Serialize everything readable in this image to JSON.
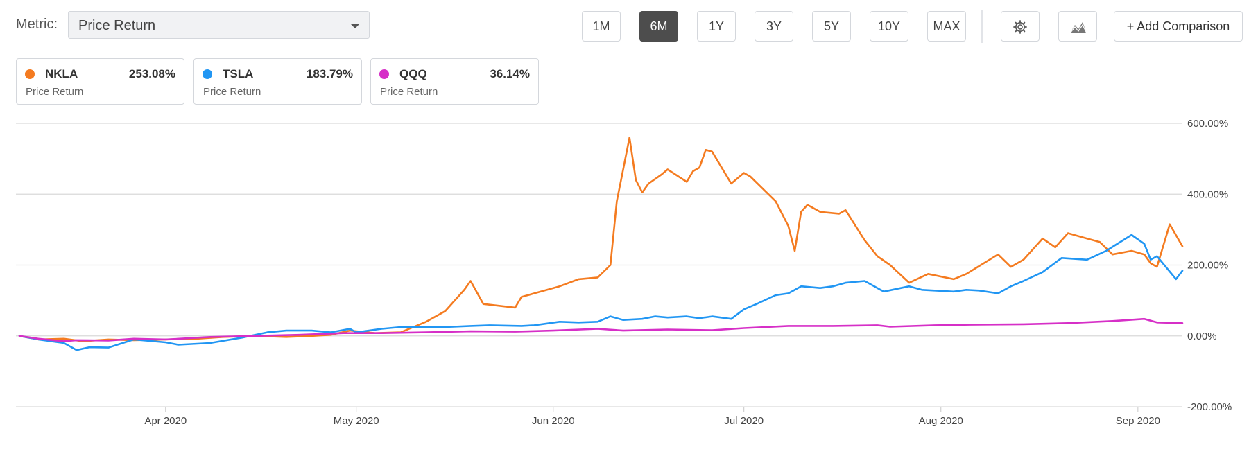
{
  "header": {
    "metric_label": "Metric:",
    "metric_value": "Price Return",
    "ranges": [
      "1M",
      "6M",
      "1Y",
      "3Y",
      "5Y",
      "10Y",
      "MAX"
    ],
    "active_range": "6M",
    "settings_icon": "gear-icon",
    "chart_type_icon": "mountain-chart-icon",
    "add_comparison_label": "+ Add Comparison"
  },
  "legend": [
    {
      "ticker": "NKLA",
      "value": "253.08%",
      "sub": "Price Return",
      "color": "#f47b20"
    },
    {
      "ticker": "TSLA",
      "value": "183.79%",
      "sub": "Price Return",
      "color": "#2196f3"
    },
    {
      "ticker": "QQQ",
      "value": "36.14%",
      "sub": "Price Return",
      "color": "#d62fc7"
    }
  ],
  "chart_data": {
    "type": "line",
    "x_start": "2020-03-09",
    "x_end": "2020-09-08",
    "ylim": [
      -200,
      600
    ],
    "y_ticks": [
      "600.00%",
      "400.00%",
      "200.00%",
      "0.00%",
      "-200.00%"
    ],
    "x_ticks": [
      {
        "label": "Apr 2020",
        "date": "2020-04-01"
      },
      {
        "label": "May 2020",
        "date": "2020-05-01"
      },
      {
        "label": "Jun 2020",
        "date": "2020-06-01"
      },
      {
        "label": "Jul 2020",
        "date": "2020-07-01"
      },
      {
        "label": "Aug 2020",
        "date": "2020-08-01"
      },
      {
        "label": "Sep 2020",
        "date": "2020-09-01"
      }
    ],
    "grid": true,
    "series": [
      {
        "name": "NKLA",
        "color": "#f47b20",
        "points": [
          [
            "2020-03-09",
            0
          ],
          [
            "2020-03-12",
            -10
          ],
          [
            "2020-03-16",
            -8
          ],
          [
            "2020-03-19",
            -15
          ],
          [
            "2020-03-23",
            -10
          ],
          [
            "2020-03-27",
            -12
          ],
          [
            "2020-04-01",
            -10
          ],
          [
            "2020-04-06",
            -8
          ],
          [
            "2020-04-10",
            -3
          ],
          [
            "2020-04-15",
            0
          ],
          [
            "2020-04-20",
            -3
          ],
          [
            "2020-04-24",
            0
          ],
          [
            "2020-04-27",
            3
          ],
          [
            "2020-04-30",
            15
          ],
          [
            "2020-05-04",
            8
          ],
          [
            "2020-05-08",
            10
          ],
          [
            "2020-05-12",
            40
          ],
          [
            "2020-05-15",
            70
          ],
          [
            "2020-05-18",
            130
          ],
          [
            "2020-05-19",
            155
          ],
          [
            "2020-05-21",
            90
          ],
          [
            "2020-05-26",
            80
          ],
          [
            "2020-05-27",
            110
          ],
          [
            "2020-05-29",
            120
          ],
          [
            "2020-06-02",
            140
          ],
          [
            "2020-06-05",
            160
          ],
          [
            "2020-06-08",
            165
          ],
          [
            "2020-06-10",
            200
          ],
          [
            "2020-06-11",
            380
          ],
          [
            "2020-06-12",
            470
          ],
          [
            "2020-06-13",
            560
          ],
          [
            "2020-06-14",
            440
          ],
          [
            "2020-06-15",
            405
          ],
          [
            "2020-06-16",
            430
          ],
          [
            "2020-06-18",
            455
          ],
          [
            "2020-06-19",
            470
          ],
          [
            "2020-06-22",
            435
          ],
          [
            "2020-06-23",
            465
          ],
          [
            "2020-06-24",
            475
          ],
          [
            "2020-06-25",
            525
          ],
          [
            "2020-06-26",
            520
          ],
          [
            "2020-06-29",
            430
          ],
          [
            "2020-07-01",
            460
          ],
          [
            "2020-07-02",
            450
          ],
          [
            "2020-07-06",
            380
          ],
          [
            "2020-07-08",
            310
          ],
          [
            "2020-07-09",
            240
          ],
          [
            "2020-07-10",
            350
          ],
          [
            "2020-07-11",
            370
          ],
          [
            "2020-07-13",
            350
          ],
          [
            "2020-07-16",
            345
          ],
          [
            "2020-07-17",
            355
          ],
          [
            "2020-07-20",
            270
          ],
          [
            "2020-07-22",
            225
          ],
          [
            "2020-07-24",
            200
          ],
          [
            "2020-07-27",
            150
          ],
          [
            "2020-07-30",
            175
          ],
          [
            "2020-08-03",
            160
          ],
          [
            "2020-08-05",
            175
          ],
          [
            "2020-08-10",
            230
          ],
          [
            "2020-08-12",
            195
          ],
          [
            "2020-08-14",
            215
          ],
          [
            "2020-08-17",
            275
          ],
          [
            "2020-08-19",
            250
          ],
          [
            "2020-08-21",
            290
          ],
          [
            "2020-08-24",
            275
          ],
          [
            "2020-08-26",
            265
          ],
          [
            "2020-08-28",
            230
          ],
          [
            "2020-08-31",
            240
          ],
          [
            "2020-09-02",
            230
          ],
          [
            "2020-09-03",
            205
          ],
          [
            "2020-09-04",
            195
          ],
          [
            "2020-09-06",
            315
          ],
          [
            "2020-09-08",
            253
          ]
        ]
      },
      {
        "name": "TSLA",
        "color": "#2196f3",
        "points": [
          [
            "2020-03-09",
            0
          ],
          [
            "2020-03-12",
            -10
          ],
          [
            "2020-03-16",
            -20
          ],
          [
            "2020-03-18",
            -40
          ],
          [
            "2020-03-20",
            -32
          ],
          [
            "2020-03-23",
            -33
          ],
          [
            "2020-03-27",
            -10
          ],
          [
            "2020-04-01",
            -18
          ],
          [
            "2020-04-03",
            -25
          ],
          [
            "2020-04-08",
            -20
          ],
          [
            "2020-04-13",
            -5
          ],
          [
            "2020-04-17",
            10
          ],
          [
            "2020-04-20",
            15
          ],
          [
            "2020-04-24",
            15
          ],
          [
            "2020-04-27",
            10
          ],
          [
            "2020-04-30",
            20
          ],
          [
            "2020-05-01",
            10
          ],
          [
            "2020-05-05",
            20
          ],
          [
            "2020-05-08",
            25
          ],
          [
            "2020-05-12",
            25
          ],
          [
            "2020-05-15",
            25
          ],
          [
            "2020-05-19",
            28
          ],
          [
            "2020-05-22",
            30
          ],
          [
            "2020-05-27",
            28
          ],
          [
            "2020-05-29",
            30
          ],
          [
            "2020-06-02",
            40
          ],
          [
            "2020-06-05",
            38
          ],
          [
            "2020-06-08",
            40
          ],
          [
            "2020-06-10",
            55
          ],
          [
            "2020-06-12",
            45
          ],
          [
            "2020-06-15",
            48
          ],
          [
            "2020-06-17",
            55
          ],
          [
            "2020-06-19",
            52
          ],
          [
            "2020-06-22",
            55
          ],
          [
            "2020-06-24",
            50
          ],
          [
            "2020-06-26",
            55
          ],
          [
            "2020-06-29",
            48
          ],
          [
            "2020-07-01",
            75
          ],
          [
            "2020-07-03",
            90
          ],
          [
            "2020-07-06",
            115
          ],
          [
            "2020-07-08",
            120
          ],
          [
            "2020-07-10",
            140
          ],
          [
            "2020-07-13",
            135
          ],
          [
            "2020-07-15",
            140
          ],
          [
            "2020-07-17",
            150
          ],
          [
            "2020-07-20",
            155
          ],
          [
            "2020-07-21",
            145
          ],
          [
            "2020-07-23",
            125
          ],
          [
            "2020-07-27",
            140
          ],
          [
            "2020-07-29",
            130
          ],
          [
            "2020-08-03",
            125
          ],
          [
            "2020-08-05",
            130
          ],
          [
            "2020-08-07",
            128
          ],
          [
            "2020-08-10",
            120
          ],
          [
            "2020-08-12",
            140
          ],
          [
            "2020-08-14",
            155
          ],
          [
            "2020-08-17",
            180
          ],
          [
            "2020-08-20",
            220
          ],
          [
            "2020-08-24",
            215
          ],
          [
            "2020-08-27",
            240
          ],
          [
            "2020-08-31",
            285
          ],
          [
            "2020-09-02",
            260
          ],
          [
            "2020-09-03",
            215
          ],
          [
            "2020-09-04",
            225
          ],
          [
            "2020-09-07",
            160
          ],
          [
            "2020-09-08",
            184
          ]
        ]
      },
      {
        "name": "QQQ",
        "color": "#d62fc7",
        "points": [
          [
            "2020-03-09",
            0
          ],
          [
            "2020-03-12",
            -8
          ],
          [
            "2020-03-16",
            -15
          ],
          [
            "2020-03-18",
            -12
          ],
          [
            "2020-03-23",
            -13
          ],
          [
            "2020-03-27",
            -8
          ],
          [
            "2020-04-01",
            -10
          ],
          [
            "2020-04-08",
            -3
          ],
          [
            "2020-04-15",
            0
          ],
          [
            "2020-04-22",
            3
          ],
          [
            "2020-04-29",
            8
          ],
          [
            "2020-05-05",
            8
          ],
          [
            "2020-05-12",
            10
          ],
          [
            "2020-05-19",
            13
          ],
          [
            "2020-05-26",
            12
          ],
          [
            "2020-06-01",
            15
          ],
          [
            "2020-06-08",
            20
          ],
          [
            "2020-06-12",
            15
          ],
          [
            "2020-06-19",
            18
          ],
          [
            "2020-06-26",
            16
          ],
          [
            "2020-07-01",
            22
          ],
          [
            "2020-07-08",
            28
          ],
          [
            "2020-07-15",
            28
          ],
          [
            "2020-07-22",
            30
          ],
          [
            "2020-07-24",
            26
          ],
          [
            "2020-07-31",
            30
          ],
          [
            "2020-08-07",
            32
          ],
          [
            "2020-08-14",
            33
          ],
          [
            "2020-08-21",
            36
          ],
          [
            "2020-08-28",
            42
          ],
          [
            "2020-09-02",
            48
          ],
          [
            "2020-09-04",
            38
          ],
          [
            "2020-09-08",
            36
          ]
        ]
      }
    ]
  }
}
